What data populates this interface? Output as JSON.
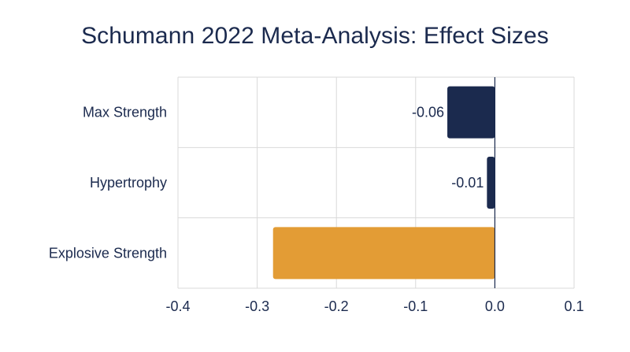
{
  "chart_data": {
    "type": "bar",
    "orientation": "horizontal",
    "title": "Schumann 2022 Meta-Analysis: Effect Sizes",
    "categories": [
      "Max Strength",
      "Hypertrophy",
      "Explosive Strength"
    ],
    "values": [
      -0.06,
      -0.01,
      -0.28
    ],
    "data_labels": [
      "-0.06",
      "-0.01",
      ""
    ],
    "bar_colors": [
      "#1b2a4e",
      "#1b2a4e",
      "#e39c35"
    ],
    "xlim": [
      -0.4,
      0.1
    ],
    "x_ticks": [
      -0.4,
      -0.3,
      -0.2,
      -0.1,
      0.0,
      0.1
    ],
    "x_tick_labels": [
      "-0.4",
      "-0.3",
      "-0.2",
      "-0.1",
      "0.0",
      "0.1"
    ],
    "xlabel": "",
    "ylabel": "",
    "grid": true,
    "legend": "none"
  },
  "colors": {
    "text": "#1b2a4e",
    "grid": "#d9d9d9"
  }
}
